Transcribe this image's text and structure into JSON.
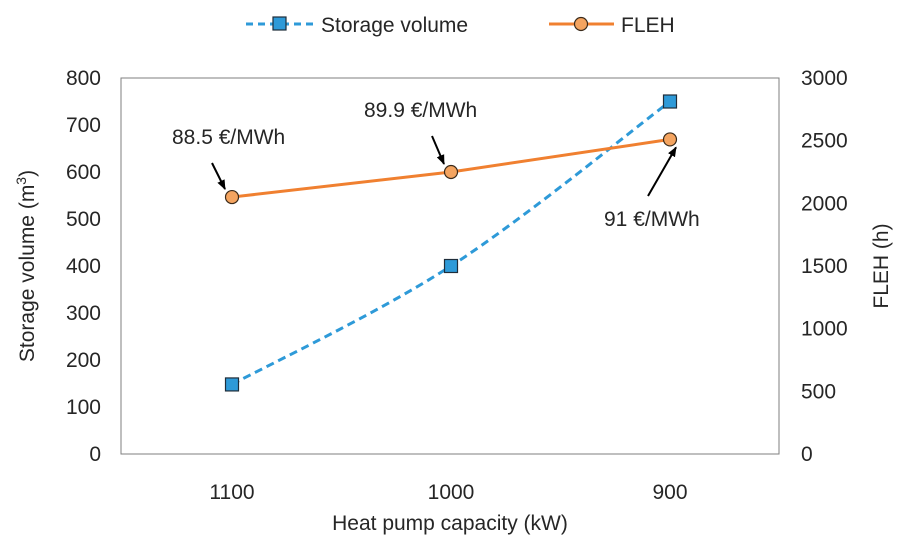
{
  "chart_data": {
    "type": "line",
    "x_categories": [
      "1100",
      "1000",
      "900"
    ],
    "xlabel": "Heat pump capacity (kW)",
    "ylabel_left_main": "Storage volume  (m",
    "ylabel_left_sup": "3",
    "ylabel_left_end": ")",
    "ylabel_right": "FLEH (h)",
    "ylim_left": [
      0,
      800
    ],
    "yticks_left": [
      "0",
      "100",
      "200",
      "300",
      "400",
      "500",
      "600",
      "700",
      "800"
    ],
    "ylim_right": [
      0,
      3000
    ],
    "yticks_right": [
      "0",
      "500",
      "1000",
      "1500",
      "2000",
      "2500",
      "3000"
    ],
    "grid": false,
    "legend_position": "top",
    "series": [
      {
        "name": "Storage volume",
        "axis": "left",
        "style": "dashed",
        "marker": "square",
        "color": "#2E9AD8",
        "marker_fill": "#2E9AD8",
        "values": [
          148,
          400,
          750
        ]
      },
      {
        "name": "FLEH",
        "axis": "right",
        "style": "solid",
        "marker": "circle",
        "color": "#F08030",
        "marker_fill": "#F4A460",
        "values": [
          2050,
          2250,
          2510
        ]
      }
    ],
    "annotations": [
      {
        "text": "88.5 €/MWh",
        "series_index": 1,
        "point_index": 0
      },
      {
        "text": "89.9 €/MWh",
        "series_index": 1,
        "point_index": 1
      },
      {
        "text": "91 €/MWh",
        "series_index": 1,
        "point_index": 2
      }
    ]
  }
}
